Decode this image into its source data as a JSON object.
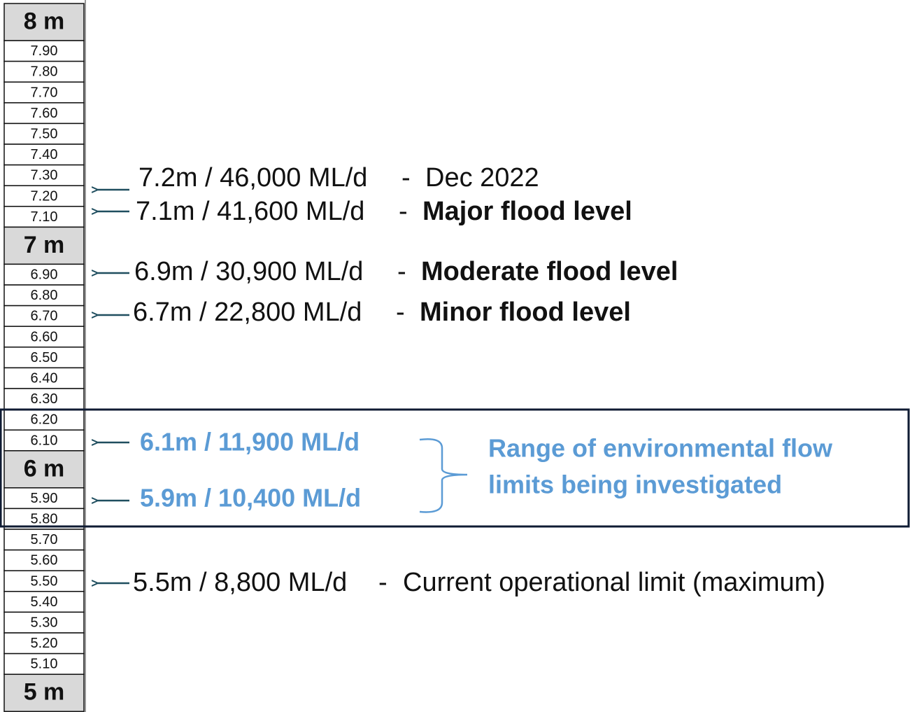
{
  "gauge": [
    "8 m",
    "7.90",
    "7.80",
    "7.70",
    "7.60",
    "7.50",
    "7.40",
    "7.30",
    "7.20",
    "7.10",
    "7 m",
    "6.90",
    "6.80",
    "6.70",
    "6.60",
    "6.50",
    "6.40",
    "6.30",
    "6.20",
    "6.10",
    "6 m",
    "5.90",
    "5.80",
    "5.70",
    "5.60",
    "5.50",
    "5.40",
    "5.30",
    "5.20",
    "5.10",
    "5 m"
  ],
  "annotations": [
    {
      "flow": "7.2m / 46,000 ML/d",
      "dash": "-",
      "description": "Dec 2022"
    },
    {
      "flow": "7.1m / 41,600 ML/d",
      "dash": "-",
      "description": "Major flood level"
    },
    {
      "flow": "6.9m / 30,900 ML/d",
      "dash": "-",
      "description": "Moderate flood level"
    },
    {
      "flow": "6.7m / 22,800 ML/d",
      "dash": "-",
      "description": "Minor flood level"
    },
    {
      "flow": "5.5m / 8,800 ML/d",
      "dash": "-",
      "description": "Current operational limit (maximum)"
    }
  ],
  "range": {
    "upper": "6.1m / 11,900 ML/d",
    "lower": "5.9m / 10,400 ML/d",
    "label": [
      "Range of environmental flow",
      "limits being investigated"
    ]
  }
}
